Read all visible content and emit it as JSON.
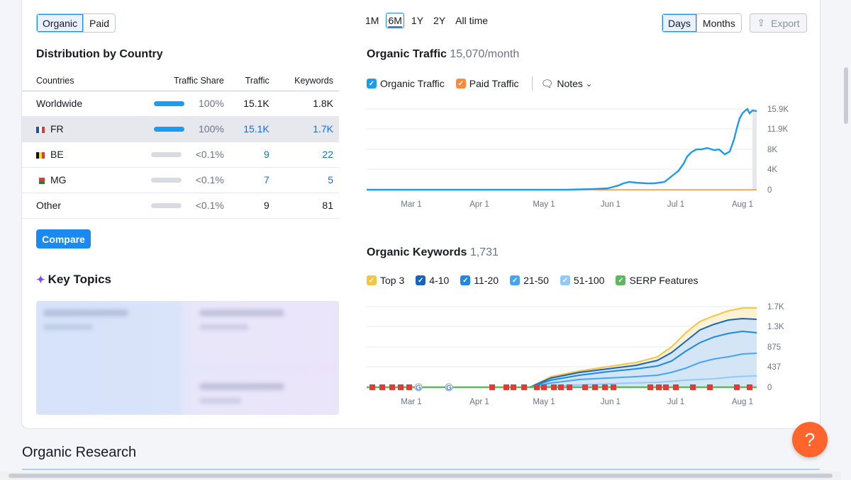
{
  "toggle": {
    "organic": "Organic",
    "paid": "Paid"
  },
  "distribution": {
    "title": "Distribution by Country",
    "headers": [
      "Countries",
      "Traffic Share",
      "Traffic",
      "Keywords"
    ],
    "rows": [
      {
        "name": "Worldwide",
        "share": "100%",
        "traffic": "15.1K",
        "keywords": "1.8K",
        "bar": 1
      },
      {
        "name": "FR",
        "share": "100%",
        "traffic": "15.1K",
        "keywords": "1.7K",
        "bar": 1
      },
      {
        "name": "BE",
        "share": "<0.1%",
        "traffic": "9",
        "keywords": "22",
        "bar": 0
      },
      {
        "name": "MG",
        "share": "<0.1%",
        "traffic": "7",
        "keywords": "5",
        "bar": 0
      },
      {
        "name": "Other",
        "share": "<0.1%",
        "traffic": "9",
        "keywords": "81",
        "bar": 0
      }
    ],
    "compare": "Compare"
  },
  "key_topics": {
    "title": "Key Topics"
  },
  "range": {
    "items": [
      "1M",
      "6M",
      "1Y",
      "2Y",
      "All time"
    ],
    "selected": "6M"
  },
  "granularity": {
    "days": "Days",
    "months": "Months"
  },
  "export": "Export",
  "traffic": {
    "title": "Organic Traffic",
    "value": "15,070/month",
    "legend": {
      "organic": "Organic Traffic",
      "paid": "Paid Traffic",
      "notes": "Notes"
    },
    "yticks": [
      "15.9K",
      "11.9K",
      "8K",
      "4K",
      "0"
    ],
    "xticks": [
      "Mar 1",
      "Apr 1",
      "May 1",
      "Jun 1",
      "Jul 1",
      "Aug 1"
    ]
  },
  "keywords": {
    "title": "Organic Keywords",
    "value": "1,731",
    "legend": [
      "Top 3",
      "4-10",
      "11-20",
      "21-50",
      "51-100",
      "SERP Features"
    ],
    "legend_colors": [
      "#f6c343",
      "#1565c0",
      "#1e88e5",
      "#42a5f5",
      "#90caf9",
      "#5cb85c"
    ],
    "yticks": [
      "1.7K",
      "1.3K",
      "875",
      "437",
      "0"
    ],
    "xticks": [
      "Mar 1",
      "Apr 1",
      "May 1",
      "Jun 1",
      "Jul 1",
      "Aug 1"
    ]
  },
  "section": {
    "title": "Organic Research"
  },
  "help": "?",
  "colors": {
    "accent": "#1a8af0",
    "organic": "#1d9bf0",
    "paid": "#ff8a3d",
    "help": "#ff642d"
  }
}
